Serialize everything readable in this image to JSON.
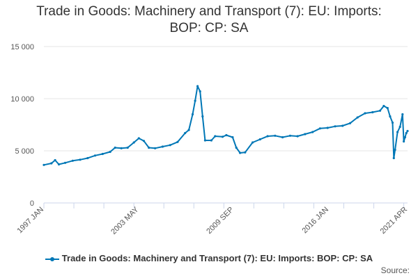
{
  "title_line1": "Trade in Goods: Machinery and Transport (7): EU: Imports:",
  "title_line2": "BOP: CP: SA",
  "legend_label": "Trade in Goods: Machinery and Transport (7): EU: Imports: BOP: CP: SA",
  "source_label": "Source:",
  "colors": {
    "series": "#0077b6",
    "grid": "#e6e6e6",
    "axis": "#ccd6eb"
  },
  "chart_data": {
    "type": "line",
    "title": "Trade in Goods: Machinery and Transport (7): EU: Imports: BOP: CP: SA",
    "xlabel": "",
    "ylabel": "",
    "ylim": [
      0,
      15000
    ],
    "yticks": [
      0,
      5000,
      10000,
      15000
    ],
    "ytick_labels": [
      "0",
      "5 000",
      "10 000",
      "15 000"
    ],
    "x_range": [
      "1997 JAN",
      "2021 APR"
    ],
    "xtick_labels": [
      "1997 JAN",
      "2003 MAY",
      "2009 SEP",
      "2016 JAN",
      "2021 APR"
    ],
    "grid": true,
    "legend_position": "bottom",
    "series": [
      {
        "name": "Trade in Goods: Machinery and Transport (7): EU: Imports: BOP: CP: SA",
        "points": [
          [
            "1997-01",
            3650
          ],
          [
            "1997-07",
            3800
          ],
          [
            "1997-10",
            4100
          ],
          [
            "1998-01",
            3700
          ],
          [
            "1998-06",
            3850
          ],
          [
            "1998-12",
            4050
          ],
          [
            "1999-06",
            4150
          ],
          [
            "1999-12",
            4300
          ],
          [
            "2000-06",
            4550
          ],
          [
            "2000-12",
            4700
          ],
          [
            "2001-06",
            4900
          ],
          [
            "2001-10",
            5300
          ],
          [
            "2002-03",
            5250
          ],
          [
            "2002-08",
            5300
          ],
          [
            "2003-01",
            5800
          ],
          [
            "2003-05",
            6200
          ],
          [
            "2003-09",
            5950
          ],
          [
            "2004-01",
            5300
          ],
          [
            "2004-06",
            5250
          ],
          [
            "2004-12",
            5400
          ],
          [
            "2005-06",
            5550
          ],
          [
            "2005-12",
            5850
          ],
          [
            "2006-06",
            6700
          ],
          [
            "2006-09",
            7000
          ],
          [
            "2006-12",
            8500
          ],
          [
            "2007-02",
            9800
          ],
          [
            "2007-04",
            11200
          ],
          [
            "2007-06",
            10700
          ],
          [
            "2007-08",
            8300
          ],
          [
            "2007-10",
            6000
          ],
          [
            "2008-03",
            6000
          ],
          [
            "2008-06",
            6400
          ],
          [
            "2008-12",
            6350
          ],
          [
            "2009-03",
            6500
          ],
          [
            "2009-08",
            6300
          ],
          [
            "2009-11",
            5300
          ],
          [
            "2010-02",
            4800
          ],
          [
            "2010-06",
            4850
          ],
          [
            "2010-12",
            5800
          ],
          [
            "2011-06",
            6100
          ],
          [
            "2011-12",
            6400
          ],
          [
            "2012-06",
            6450
          ],
          [
            "2012-12",
            6300
          ],
          [
            "2013-06",
            6450
          ],
          [
            "2013-12",
            6400
          ],
          [
            "2014-06",
            6600
          ],
          [
            "2014-12",
            6800
          ],
          [
            "2015-06",
            7150
          ],
          [
            "2015-12",
            7200
          ],
          [
            "2016-06",
            7350
          ],
          [
            "2016-12",
            7400
          ],
          [
            "2017-06",
            7650
          ],
          [
            "2017-12",
            8200
          ],
          [
            "2018-06",
            8600
          ],
          [
            "2018-12",
            8700
          ],
          [
            "2019-06",
            8850
          ],
          [
            "2019-09",
            9300
          ],
          [
            "2019-12",
            9100
          ],
          [
            "2020-02",
            8300
          ],
          [
            "2020-04",
            7700
          ],
          [
            "2020-05",
            4300
          ],
          [
            "2020-06",
            5100
          ],
          [
            "2020-08",
            6800
          ],
          [
            "2020-10",
            7300
          ],
          [
            "2020-12",
            8500
          ],
          [
            "2021-01",
            5900
          ],
          [
            "2021-02",
            6300
          ],
          [
            "2021-03",
            6700
          ],
          [
            "2021-04",
            6900
          ]
        ]
      }
    ]
  }
}
